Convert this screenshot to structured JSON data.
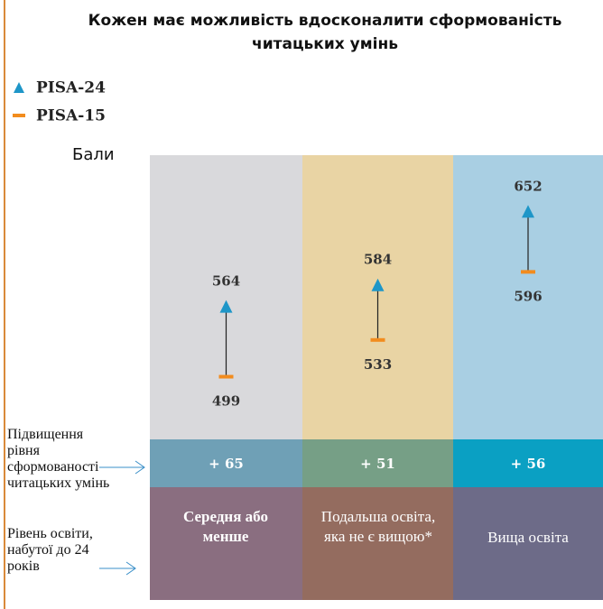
{
  "chart_data": {
    "type": "arrow-range",
    "title": "Кожен має можливість вдосконалити сформованість читацьких умінь",
    "y_label": "Бали",
    "categories": [
      "Середня або менше",
      "Подальша освіта, яка не є вищою*",
      "Вища освіта"
    ],
    "series": [
      {
        "name": "PISA-24",
        "color": "#1e96c8",
        "values": [
          564,
          584,
          652
        ]
      },
      {
        "name": "PISA-15",
        "color": "#f28c1e",
        "values": [
          499,
          533,
          596
        ]
      }
    ],
    "increases": {
      "values": [
        65,
        51,
        56
      ],
      "value_labels": [
        "+ 65",
        "+ 51",
        "+ 56"
      ]
    },
    "row_labels": [
      "Підвищення рівня сформованості читацьких умінь",
      "Рівень освіти, набутої до 24 років"
    ],
    "ylim": [
      441,
      704
    ]
  }
}
